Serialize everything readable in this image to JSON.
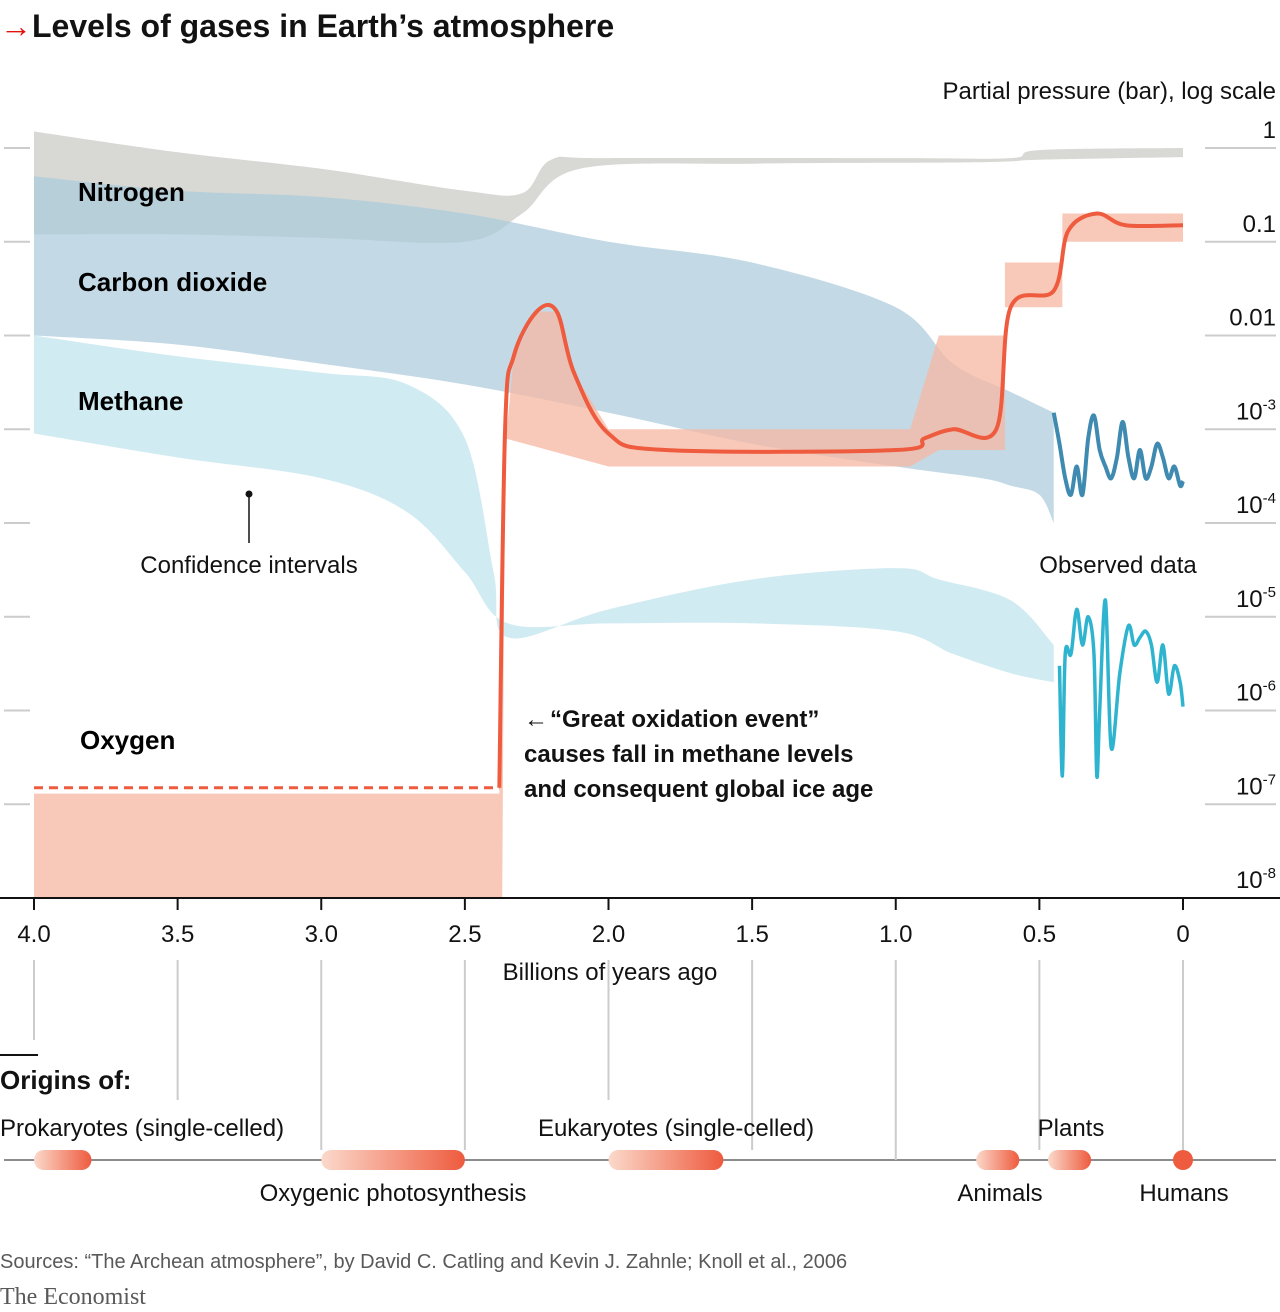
{
  "header": {
    "arrow_glyph": "→",
    "title": "Levels of gases in Earth’s atmosphere"
  },
  "chart_data": {
    "type": "area",
    "title": "Levels of gases in Earth’s atmosphere",
    "xlabel": "Billions of years ago",
    "ylabel": "Partial pressure (bar), log scale",
    "x_reversed": true,
    "xlim": [
      4.0,
      0
    ],
    "ylim": [
      1e-08,
      1
    ],
    "yscale": "log",
    "xticks": [
      "4.0",
      "3.5",
      "3.0",
      "2.5",
      "2.0",
      "1.5",
      "1.0",
      "0.5",
      "0"
    ],
    "yticks": [
      {
        "base": "1",
        "exp": ""
      },
      {
        "base": "0.1",
        "exp": ""
      },
      {
        "base": "0.01",
        "exp": ""
      },
      {
        "base": "10",
        "exp": "-3"
      },
      {
        "base": "10",
        "exp": "-4"
      },
      {
        "base": "10",
        "exp": "-5"
      },
      {
        "base": "10",
        "exp": "-6"
      },
      {
        "base": "10",
        "exp": "-7"
      },
      {
        "base": "10",
        "exp": "-8"
      }
    ],
    "colors": {
      "nitrogen_band": "#d6d7d2",
      "nitrogen_label": "#8c8c8c",
      "co2_band": "#a9cbdc",
      "co2_label": "#5b9bbf",
      "co2_observed": "#3f8ab0",
      "methane_band": "#c6e6ef",
      "methane_label": "#36b7d4",
      "methane_observed": "#2fb4d0",
      "oxygen_band": "#f6b7a2",
      "oxygen_line": "#ee5b3e",
      "oxygen_label": "#ee5b3e",
      "grid": "#cccccc",
      "axis": "#121212"
    },
    "series": [
      {
        "name": "Nitrogen",
        "kind": "band",
        "upper": [
          [
            4.0,
            1.5
          ],
          [
            3.5,
            0.9
          ],
          [
            3.0,
            0.6
          ],
          [
            2.5,
            0.35
          ],
          [
            2.3,
            0.33
          ],
          [
            2.2,
            0.75
          ],
          [
            2.0,
            0.78
          ],
          [
            1.0,
            0.78
          ],
          [
            0.6,
            0.78
          ],
          [
            0.5,
            0.95
          ],
          [
            0,
            1.0
          ]
        ],
        "lower": [
          [
            4.0,
            0.12
          ],
          [
            3.5,
            0.12
          ],
          [
            3.0,
            0.11
          ],
          [
            2.5,
            0.1
          ],
          [
            2.3,
            0.2
          ],
          [
            2.1,
            0.6
          ],
          [
            1.5,
            0.68
          ],
          [
            0.8,
            0.7
          ],
          [
            0.6,
            0.72
          ],
          [
            0.5,
            0.75
          ],
          [
            0,
            0.8
          ]
        ]
      },
      {
        "name": "Carbon dioxide",
        "kind": "band",
        "upper": [
          [
            4.0,
            0.5
          ],
          [
            3.5,
            0.35
          ],
          [
            3.0,
            0.3
          ],
          [
            2.5,
            0.2
          ],
          [
            2.0,
            0.1
          ],
          [
            1.5,
            0.06
          ],
          [
            1.0,
            0.02
          ],
          [
            0.8,
            0.005
          ],
          [
            0.6,
            0.0025
          ],
          [
            0.45,
            0.0015
          ]
        ],
        "lower": [
          [
            4.0,
            0.01
          ],
          [
            3.5,
            0.008
          ],
          [
            3.0,
            0.005
          ],
          [
            2.5,
            0.003
          ],
          [
            2.0,
            0.0015
          ],
          [
            1.5,
            0.0007
          ],
          [
            1.0,
            0.0004
          ],
          [
            0.7,
            0.0003
          ],
          [
            0.6,
            0.00025
          ],
          [
            0.5,
            0.0002
          ],
          [
            0.45,
            0.0001
          ]
        ]
      },
      {
        "name": "Methane",
        "kind": "band",
        "upper": [
          [
            4.0,
            0.01
          ],
          [
            3.5,
            0.006
          ],
          [
            3.0,
            0.004
          ],
          [
            2.7,
            0.003
          ],
          [
            2.5,
            0.0008
          ],
          [
            2.4,
            3e-05
          ],
          [
            2.35,
            6e-06
          ],
          [
            2.0,
            1.2e-05
          ],
          [
            1.5,
            2.5e-05
          ],
          [
            1.0,
            3.3e-05
          ],
          [
            0.85,
            2.5e-05
          ],
          [
            0.6,
            1.5e-05
          ],
          [
            0.45,
            5e-06
          ]
        ],
        "lower": [
          [
            4.0,
            0.0009
          ],
          [
            3.5,
            0.0005
          ],
          [
            3.0,
            0.0003
          ],
          [
            2.7,
            0.00013
          ],
          [
            2.5,
            3e-05
          ],
          [
            2.35,
            8.5e-06
          ],
          [
            2.0,
            8.5e-06
          ],
          [
            1.5,
            8.5e-06
          ],
          [
            1.0,
            7e-06
          ],
          [
            0.8,
            4e-06
          ],
          [
            0.6,
            2.5e-06
          ],
          [
            0.45,
            2e-06
          ]
        ]
      },
      {
        "name": "Oxygen",
        "kind": "band-and-line",
        "line": [
          [
            4.0,
            1.5e-07
          ],
          [
            2.38,
            1.5e-07
          ],
          [
            2.36,
            0.001
          ],
          [
            2.33,
            0.006
          ],
          [
            2.25,
            0.018
          ],
          [
            2.18,
            0.018
          ],
          [
            2.12,
            0.004
          ],
          [
            2.0,
            0.0009
          ],
          [
            1.8,
            0.0006
          ],
          [
            1.0,
            0.0006
          ],
          [
            0.9,
            0.0008
          ],
          [
            0.8,
            0.001
          ],
          [
            0.65,
            0.001
          ],
          [
            0.6,
            0.02
          ],
          [
            0.45,
            0.03
          ],
          [
            0.4,
            0.13
          ],
          [
            0.3,
            0.2
          ],
          [
            0.2,
            0.15
          ],
          [
            0,
            0.15
          ]
        ],
        "dashed_until": 2.38,
        "upper": [
          [
            4.0,
            1.3e-07
          ],
          [
            2.38,
            1.3e-07
          ],
          [
            2.36,
            0.0006
          ],
          [
            2.33,
            0.006
          ],
          [
            2.25,
            0.018
          ],
          [
            2.18,
            0.018
          ],
          [
            2.12,
            0.004
          ],
          [
            2.0,
            0.001
          ],
          [
            0.95,
            0.001
          ],
          [
            0.85,
            0.01
          ],
          [
            0.62,
            0.01
          ],
          [
            0.62,
            0.06
          ],
          [
            0.42,
            0.06
          ],
          [
            0.42,
            0.2
          ],
          [
            0,
            0.2
          ]
        ],
        "lower": [
          [
            4.0,
            1e-08
          ],
          [
            2.37,
            1e-08
          ],
          [
            2.36,
            0.0008
          ],
          [
            2.0,
            0.0004
          ],
          [
            0.95,
            0.0004
          ],
          [
            0.85,
            0.0006
          ],
          [
            0.62,
            0.0006
          ],
          [
            0.62,
            0.02
          ],
          [
            0.42,
            0.02
          ],
          [
            0.42,
            0.1
          ],
          [
            0,
            0.1
          ]
        ]
      }
    ],
    "observed_data": {
      "label": "Observed data",
      "co2": [
        [
          0.45,
          0.0015
        ],
        [
          0.43,
          0.0007
        ],
        [
          0.41,
          0.0003
        ],
        [
          0.39,
          0.0002
        ],
        [
          0.37,
          0.0004
        ],
        [
          0.35,
          0.0002
        ],
        [
          0.33,
          0.0008
        ],
        [
          0.31,
          0.0014
        ],
        [
          0.29,
          0.0006
        ],
        [
          0.27,
          0.0004
        ],
        [
          0.25,
          0.0003
        ],
        [
          0.23,
          0.0005
        ],
        [
          0.21,
          0.0012
        ],
        [
          0.19,
          0.0005
        ],
        [
          0.17,
          0.0003
        ],
        [
          0.15,
          0.0006
        ],
        [
          0.13,
          0.0003
        ],
        [
          0.11,
          0.0004
        ],
        [
          0.09,
          0.0007
        ],
        [
          0.07,
          0.0005
        ],
        [
          0.05,
          0.0003
        ],
        [
          0.03,
          0.0004
        ],
        [
          0.01,
          0.00025
        ],
        [
          0,
          0.00028
        ]
      ],
      "methane": [
        [
          0.43,
          3e-06
        ],
        [
          0.42,
          2e-07
        ],
        [
          0.41,
          4e-06
        ],
        [
          0.39,
          4e-06
        ],
        [
          0.37,
          1.2e-05
        ],
        [
          0.35,
          5e-06
        ],
        [
          0.33,
          1e-05
        ],
        [
          0.31,
          4e-06
        ],
        [
          0.3,
          2e-07
        ],
        [
          0.29,
          1e-06
        ],
        [
          0.27,
          1.5e-05
        ],
        [
          0.25,
          4e-07
        ],
        [
          0.22,
          2.5e-06
        ],
        [
          0.19,
          8e-06
        ],
        [
          0.17,
          5e-06
        ],
        [
          0.15,
          6e-06
        ],
        [
          0.13,
          7e-06
        ],
        [
          0.11,
          5e-06
        ],
        [
          0.09,
          2e-06
        ],
        [
          0.07,
          5e-06
        ],
        [
          0.05,
          1.5e-06
        ],
        [
          0.03,
          3e-06
        ],
        [
          0.01,
          2e-06
        ],
        [
          0,
          1.1e-06
        ]
      ]
    },
    "labels": {
      "nitrogen": "Nitrogen",
      "co2": "Carbon dioxide",
      "methane": "Methane",
      "oxygen": "Oxygen",
      "confidence": "Confidence intervals",
      "observed": "Observed data"
    },
    "annotation": {
      "arrow": "←",
      "line1": "“Great oxidation event”",
      "line2": "causes fall in methane levels",
      "line3": "and consequent global ice age"
    }
  },
  "origins": {
    "heading": "Origins of:",
    "events": [
      {
        "label": "Prokaryotes (single-celled)",
        "start": 4.0,
        "end": 3.8
      },
      {
        "label": "Oxygenic photosynthesis",
        "start": 3.0,
        "end": 2.5
      },
      {
        "label": "Eukaryotes (single-celled)",
        "start": 2.0,
        "end": 1.6
      },
      {
        "label": "Animals",
        "start": 0.72,
        "end": 0.57
      },
      {
        "label": "Plants",
        "start": 0.47,
        "end": 0.32
      },
      {
        "label": "Humans",
        "start": 0.0,
        "end": 0.0
      }
    ]
  },
  "footer": {
    "sources": "Sources: “The Archean atmosphere”, by David C. Catling and Kevin J. Zahnle; Knoll et al., 2006",
    "brand": "The Economist"
  }
}
